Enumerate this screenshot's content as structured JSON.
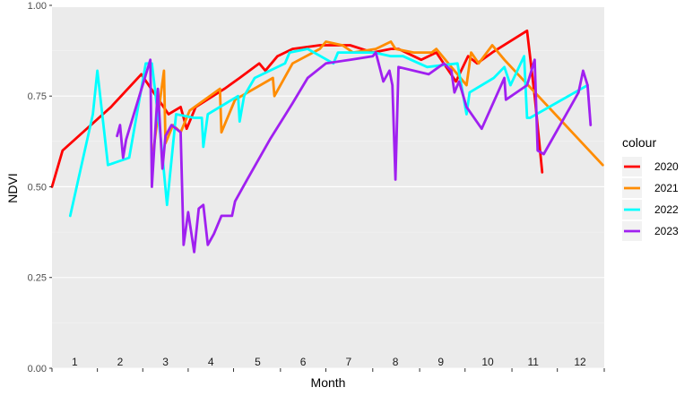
{
  "chart_data": {
    "type": "line",
    "xlabel": "Month",
    "ylabel": "NDVI",
    "ylim": [
      0,
      1
    ],
    "xlim": [
      1,
      366
    ],
    "y_ticks": [
      "0.00",
      "0.25",
      "0.50",
      "0.75",
      "1.00"
    ],
    "y_tick_values": [
      0,
      0.25,
      0.5,
      0.75,
      1.0
    ],
    "month_labels": [
      "1",
      "2",
      "3",
      "4",
      "5",
      "6",
      "7",
      "8",
      "9",
      "10",
      "11",
      "12"
    ],
    "month_label_days": [
      16,
      46,
      76,
      106,
      137,
      167,
      197,
      228,
      258,
      289,
      319,
      350
    ],
    "month_tick_days": [
      1,
      31,
      61,
      91,
      121,
      152,
      182,
      213,
      244,
      274,
      305,
      335,
      366
    ],
    "grid": true,
    "legend": {
      "title": "colour",
      "position": "right"
    },
    "series": [
      {
        "name": "2020",
        "color": "#FF0000",
        "x": [
          1,
          8,
          40,
          60,
          78,
          86,
          90,
          96,
          115,
          125,
          138,
          142,
          150,
          160,
          178,
          190,
          198,
          213,
          225,
          230,
          245,
          255,
          268,
          276,
          282,
          292,
          315,
          320,
          325
        ],
        "y": [
          0.5,
          0.6,
          0.72,
          0.81,
          0.7,
          0.72,
          0.66,
          0.72,
          0.77,
          0.8,
          0.84,
          0.82,
          0.86,
          0.88,
          0.89,
          0.89,
          0.89,
          0.87,
          0.88,
          0.88,
          0.85,
          0.87,
          0.79,
          0.86,
          0.84,
          0.87,
          0.93,
          0.75,
          0.54
        ]
      },
      {
        "name": "2021",
        "color": "#FF8C00",
        "x": [
          68,
          75,
          76,
          81,
          86,
          92,
          112,
          113,
          122,
          147,
          148,
          160,
          178,
          182,
          193,
          200,
          215,
          225,
          228,
          240,
          252,
          255,
          275,
          278,
          283,
          292,
          300,
          365
        ],
        "y": [
          0.6,
          0.82,
          0.62,
          0.67,
          0.65,
          0.71,
          0.77,
          0.65,
          0.74,
          0.8,
          0.75,
          0.84,
          0.88,
          0.9,
          0.89,
          0.87,
          0.88,
          0.9,
          0.88,
          0.87,
          0.87,
          0.88,
          0.78,
          0.87,
          0.84,
          0.89,
          0.85,
          0.56
        ]
      },
      {
        "name": "2022",
        "color": "#00FFFF",
        "x": [
          13,
          28,
          31,
          38,
          52,
          63,
          67,
          73,
          77,
          83,
          95,
          100,
          101,
          104,
          124,
          125,
          128,
          135,
          155,
          158,
          170,
          187,
          190,
          214,
          225,
          233,
          249,
          269,
          275,
          277,
          293,
          300,
          304,
          313,
          315,
          317,
          355
        ],
        "y": [
          0.42,
          0.7,
          0.82,
          0.56,
          0.58,
          0.84,
          0.84,
          0.63,
          0.45,
          0.7,
          0.69,
          0.69,
          0.61,
          0.7,
          0.75,
          0.68,
          0.75,
          0.8,
          0.84,
          0.87,
          0.88,
          0.84,
          0.87,
          0.87,
          0.86,
          0.86,
          0.83,
          0.84,
          0.7,
          0.76,
          0.8,
          0.83,
          0.78,
          0.86,
          0.69,
          0.69,
          0.78
        ]
      },
      {
        "name": "2023",
        "color": "#A020F0",
        "x": [
          44,
          46,
          48,
          50,
          66,
          67,
          71,
          74,
          76,
          80,
          86,
          88,
          91,
          95,
          98,
          101,
          104,
          108,
          113,
          120,
          122,
          130,
          145,
          160,
          170,
          182,
          198,
          213,
          215,
          220,
          224,
          226,
          228,
          230,
          250,
          260,
          265,
          267,
          270,
          275,
          285,
          300,
          301,
          315,
          320,
          322,
          326,
          349,
          352,
          355,
          357
        ],
        "y": [
          0.64,
          0.67,
          0.58,
          0.63,
          0.85,
          0.5,
          0.77,
          0.55,
          0.64,
          0.67,
          0.65,
          0.34,
          0.43,
          0.32,
          0.44,
          0.45,
          0.34,
          0.37,
          0.42,
          0.42,
          0.46,
          0.52,
          0.63,
          0.73,
          0.8,
          0.84,
          0.85,
          0.86,
          0.87,
          0.79,
          0.82,
          0.78,
          0.52,
          0.83,
          0.81,
          0.84,
          0.82,
          0.76,
          0.79,
          0.72,
          0.66,
          0.8,
          0.74,
          0.78,
          0.85,
          0.6,
          0.59,
          0.76,
          0.82,
          0.78,
          0.67
        ]
      }
    ]
  }
}
